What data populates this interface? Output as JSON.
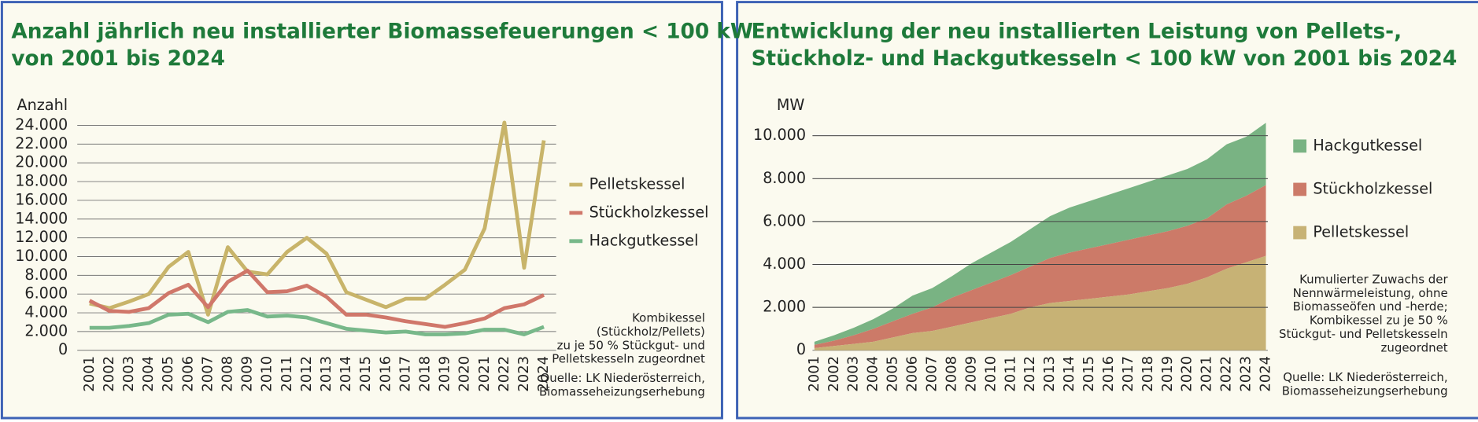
{
  "chart_data": [
    {
      "type": "line",
      "title": [
        "Anzahl jährlich neu installierter Biomassefeuerungen < 100 kW",
        "von 2001 bis 2024"
      ],
      "y_label": "Anzahl",
      "categories": [
        "2001",
        "2002",
        "2003",
        "2004",
        "2005",
        "2006",
        "2007",
        "2008",
        "2009",
        "2010",
        "2011",
        "2012",
        "2013",
        "2014",
        "2015",
        "2016",
        "2017",
        "2018",
        "2019",
        "2020",
        "2021",
        "2022",
        "2023",
        "2024"
      ],
      "series": [
        {
          "name": "Pelletskessel",
          "color": "#c8b46a",
          "values": [
            5000,
            4500,
            5200,
            6000,
            8900,
            10500,
            3800,
            11000,
            8400,
            8100,
            10500,
            12000,
            10300,
            6200,
            5400,
            4600,
            5500,
            5500,
            7000,
            8600,
            13000,
            24300,
            8800,
            22400
          ]
        },
        {
          "name": "Stückholzkessel",
          "color": "#d0776a",
          "values": [
            5300,
            4200,
            4100,
            4500,
            6100,
            7000,
            4600,
            7300,
            8500,
            6200,
            6300,
            6900,
            5700,
            3800,
            3800,
            3500,
            3100,
            2800,
            2500,
            2900,
            3400,
            4500,
            4900,
            5900
          ]
        },
        {
          "name": "Hackgutkessel",
          "color": "#78b88a",
          "values": [
            2400,
            2400,
            2600,
            2900,
            3800,
            3900,
            3000,
            4100,
            4300,
            3600,
            3700,
            3500,
            2900,
            2300,
            2100,
            1900,
            2000,
            1700,
            1700,
            1800,
            2200,
            2200,
            1700,
            2500
          ]
        }
      ],
      "ylim": [
        0,
        25000
      ],
      "yticks": [
        0,
        {
          "value": 2000,
          "label": "2.000"
        },
        {
          "value": 4000,
          "label": "4.000"
        },
        {
          "value": 6000,
          "label": "6.000"
        },
        {
          "value": 8000,
          "label": "8.000"
        },
        {
          "value": 10000,
          "label": "10.000"
        },
        {
          "value": 12000,
          "label": "12.000"
        },
        {
          "value": 14000,
          "label": "14.000"
        },
        {
          "value": 16000,
          "label": "16.000"
        },
        {
          "value": 18000,
          "label": "18.000"
        },
        {
          "value": 20000,
          "label": "20.000"
        },
        {
          "value": 22000,
          "label": "22.000"
        },
        {
          "value": 24000,
          "label": "24.000"
        }
      ],
      "grid": true,
      "notes": [
        [
          "Kombikessel",
          "(Stückholz/Pellets)",
          "zu je 50 % Stückgut- und",
          "Pelletskesseln zugeordnet"
        ],
        [
          "Quelle: LK Niederösterreich,",
          "Biomasseheizungserhebung"
        ]
      ]
    },
    {
      "type": "area",
      "title": [
        "Entwicklung der neu installierten Leistung von Pellets-,",
        "Stückholz- und Hackgutkesseln < 100 kW von 2001 bis 2024"
      ],
      "y_label": "MW",
      "categories": [
        "2001",
        "2002",
        "2003",
        "2004",
        "2005",
        "2006",
        "2007",
        "2008",
        "2009",
        "2010",
        "2011",
        "2012",
        "2013",
        "2014",
        "2015",
        "2016",
        "2017",
        "2018",
        "2019",
        "2020",
        "2021",
        "2022",
        "2023",
        "2024"
      ],
      "series": [
        {
          "name": "Pelletskessel",
          "color": "#c7b275",
          "values": [
            100,
            200,
            300,
            400,
            600,
            800,
            900,
            1100,
            1300,
            1500,
            1700,
            2000,
            2200,
            2300,
            2400,
            2500,
            2600,
            2750,
            2900,
            3100,
            3400,
            3800,
            4100,
            4400
          ]
        },
        {
          "name": "Stückholzkessel",
          "color": "#cc7a68",
          "values": [
            150,
            250,
            400,
            600,
            750,
            900,
            1100,
            1350,
            1500,
            1650,
            1800,
            1900,
            2100,
            2250,
            2350,
            2450,
            2550,
            2600,
            2650,
            2700,
            2750,
            3000,
            3100,
            3300
          ]
        },
        {
          "name": "Hackgutkessel",
          "color": "#79b383",
          "values": [
            150,
            250,
            350,
            450,
            600,
            850,
            900,
            1000,
            1250,
            1400,
            1550,
            1750,
            1950,
            2100,
            2200,
            2300,
            2400,
            2500,
            2600,
            2650,
            2750,
            2800,
            2750,
            2900
          ]
        }
      ],
      "ylim": [
        0,
        10800
      ],
      "yticks": [
        0,
        {
          "value": 2000,
          "label": "2.000"
        },
        {
          "value": 4000,
          "label": "4.000"
        },
        {
          "value": 6000,
          "label": "6.000"
        },
        {
          "value": 8000,
          "label": "8.000"
        },
        {
          "value": 10000,
          "label": "10.000"
        }
      ],
      "grid": true,
      "notes": [
        [
          "Kumulierter Zuwachs der",
          "Nennwärmeleistung, ohne",
          "Biomasseöfen und -herde;",
          "Kombikessel zu je 50 %",
          "Stückgut- und Pelletskesseln",
          "zugeordnet"
        ],
        [
          "Quelle: LK Niederösterreich,",
          "Biomasseheizungserhebung"
        ]
      ]
    }
  ]
}
